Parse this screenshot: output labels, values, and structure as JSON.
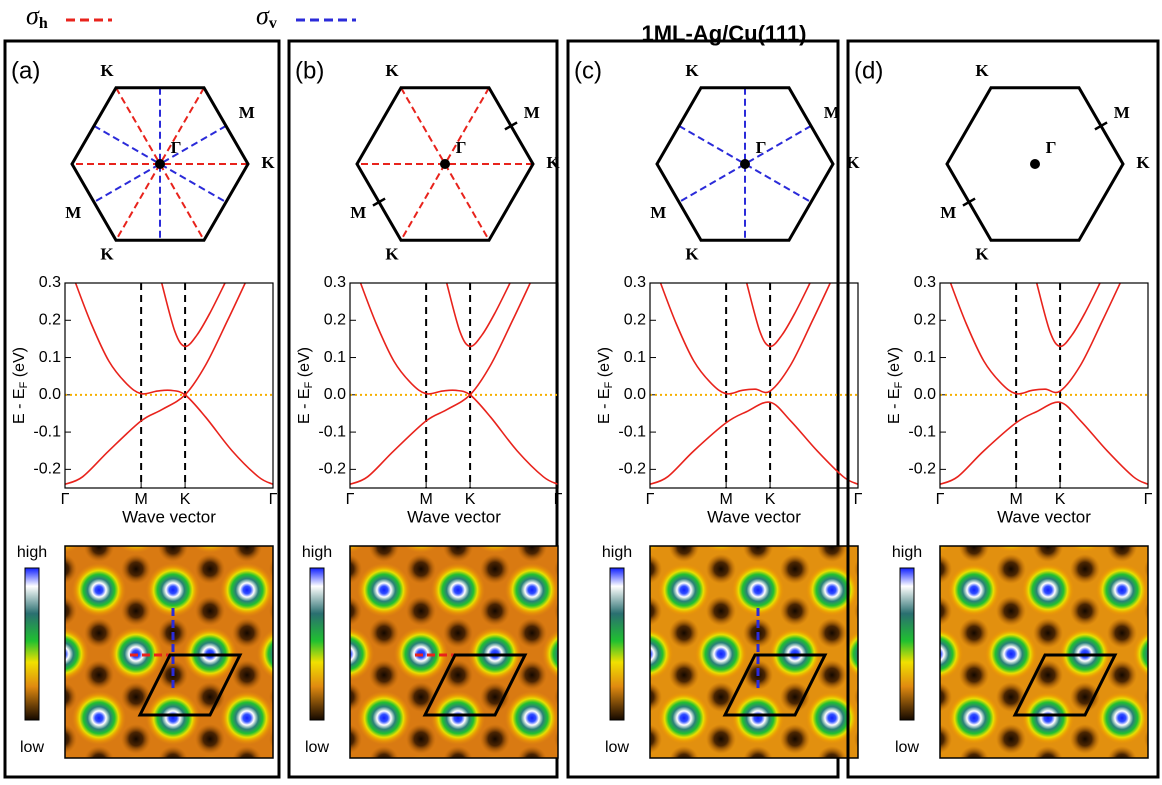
{
  "header": {
    "sigma_h": {
      "symbol": "σ",
      "sub": "h",
      "color": "#e8231c"
    },
    "sigma_v": {
      "symbol": "σ",
      "sub": "v",
      "color": "#2b2bd9"
    },
    "title": "1ML-Ag/Cu(111)"
  },
  "panels": [
    {
      "label": "(a)",
      "bz": {
        "labels": [
          "K",
          "M",
          "K",
          "M",
          "K",
          "Γ"
        ],
        "sigma_h": true,
        "sigma_v": true,
        "m_ticks": false
      },
      "stm": {
        "high": "high",
        "low": "low",
        "sigma_h": true,
        "sigma_v": true
      }
    },
    {
      "label": "(b)",
      "bz": {
        "labels": [
          "K",
          "M",
          "K",
          "M",
          "K",
          "Γ"
        ],
        "sigma_h": true,
        "sigma_v": false,
        "m_ticks": true
      },
      "stm": {
        "high": "high",
        "low": "low",
        "sigma_h": true,
        "sigma_v": false
      }
    },
    {
      "label": "(c)",
      "bz": {
        "labels": [
          "K",
          "M",
          "K",
          "M",
          "K",
          "Γ"
        ],
        "sigma_h": false,
        "sigma_v": true,
        "m_ticks": false
      },
      "stm": {
        "high": "high",
        "low": "low",
        "sigma_h": false,
        "sigma_v": true
      }
    },
    {
      "label": "(d)",
      "bz": {
        "labels": [
          "K",
          "M",
          "K",
          "M",
          "K",
          "Γ"
        ],
        "sigma_h": false,
        "sigma_v": false,
        "m_ticks": true
      },
      "stm": {
        "high": "high",
        "low": "low",
        "sigma_h": false,
        "sigma_v": false
      }
    }
  ],
  "chart_data": [
    {
      "type": "line",
      "ylabel": [
        "E - E",
        "F",
        " (eV)"
      ],
      "xlabel": "Wave vector",
      "xlim": [
        0,
        2.366
      ],
      "ylim": [
        -0.25,
        0.3
      ],
      "xticks": [
        {
          "value": 0,
          "label": "Γ"
        },
        {
          "value": 0.866,
          "label": "M"
        },
        {
          "value": 1.366,
          "label": "K"
        },
        {
          "value": 2.366,
          "label": "Γ"
        }
      ],
      "yticks": [
        0.3,
        0.2,
        0.1,
        {
          "value": 0,
          "label": "0.0"
        },
        -0.1,
        -0.2
      ],
      "zero_line_color": "#f5b000",
      "series": [
        {
          "color": "#e8231c",
          "x": [
            0.12,
            0.3,
            0.5,
            0.7,
            0.866,
            1.05,
            1.2,
            1.366,
            1.6,
            1.9,
            2.2,
            2.366
          ],
          "values": [
            0.3,
            0.19,
            0.09,
            0.03,
            0.003,
            0.01,
            0.012,
            0,
            -0.06,
            -0.15,
            -0.22,
            -0.24
          ]
        },
        {
          "color": "#e8231c",
          "x": [
            0,
            0.2,
            0.5,
            0.866,
            1.1,
            1.366,
            1.6,
            1.85,
            2.05
          ],
          "values": [
            -0.24,
            -0.22,
            -0.15,
            -0.07,
            -0.04,
            0,
            0.08,
            0.2,
            0.3
          ]
        },
        {
          "color": "#e8231c",
          "x": [
            1.1,
            1.25,
            1.366,
            1.5,
            1.65,
            1.82
          ],
          "values": [
            0.3,
            0.17,
            0.13,
            0.16,
            0.22,
            0.3
          ]
        }
      ]
    },
    {
      "type": "line",
      "ylabel": [
        "E - E",
        "F",
        " (eV)"
      ],
      "xlabel": "Wave vector",
      "xlim": [
        0,
        2.366
      ],
      "ylim": [
        -0.25,
        0.3
      ],
      "xticks": [
        {
          "value": 0,
          "label": "Γ"
        },
        {
          "value": 0.866,
          "label": "M"
        },
        {
          "value": 1.366,
          "label": "K"
        },
        {
          "value": 2.366,
          "label": "Γ"
        }
      ],
      "yticks": [
        0.3,
        0.2,
        0.1,
        {
          "value": 0,
          "label": "0.0"
        },
        -0.1,
        -0.2
      ],
      "zero_line_color": "#f5b000",
      "series": [
        {
          "color": "#e8231c",
          "x": [
            0.12,
            0.3,
            0.5,
            0.7,
            0.866,
            1.05,
            1.2,
            1.366,
            1.6,
            1.9,
            2.2,
            2.366
          ],
          "values": [
            0.3,
            0.19,
            0.09,
            0.03,
            0.003,
            0.01,
            0.012,
            0,
            -0.06,
            -0.15,
            -0.22,
            -0.24
          ]
        },
        {
          "color": "#e8231c",
          "x": [
            0,
            0.2,
            0.5,
            0.866,
            1.1,
            1.366,
            1.6,
            1.85,
            2.05
          ],
          "values": [
            -0.24,
            -0.22,
            -0.15,
            -0.07,
            -0.04,
            0,
            0.08,
            0.2,
            0.3
          ]
        },
        {
          "color": "#e8231c",
          "x": [
            1.1,
            1.25,
            1.366,
            1.5,
            1.65,
            1.82
          ],
          "values": [
            0.3,
            0.17,
            0.13,
            0.16,
            0.22,
            0.3
          ]
        }
      ]
    },
    {
      "type": "line",
      "ylabel": [
        "E - E",
        "F",
        " (eV)"
      ],
      "xlabel": "Wave vector",
      "xlim": [
        0,
        2.366
      ],
      "ylim": [
        -0.25,
        0.3
      ],
      "xticks": [
        {
          "value": 0,
          "label": "Γ"
        },
        {
          "value": 0.866,
          "label": "M"
        },
        {
          "value": 1.366,
          "label": "K"
        },
        {
          "value": 2.366,
          "label": "Γ"
        }
      ],
      "yticks": [
        0.3,
        0.2,
        0.1,
        {
          "value": 0,
          "label": "0.0"
        },
        -0.1,
        -0.2
      ],
      "zero_line_color": "#f5b000",
      "series": [
        {
          "color": "#e8231c",
          "x": [
            0.12,
            0.3,
            0.5,
            0.7,
            0.866,
            1.05,
            1.2,
            1.366,
            1.6,
            1.85,
            2.05
          ],
          "values": [
            0.3,
            0.19,
            0.09,
            0.03,
            0.003,
            0.012,
            0.015,
            0.01,
            0.08,
            0.2,
            0.3
          ]
        },
        {
          "color": "#e8231c",
          "x": [
            0,
            0.2,
            0.5,
            0.866,
            1.1,
            1.366,
            1.6,
            1.9,
            2.2,
            2.366
          ],
          "values": [
            -0.24,
            -0.22,
            -0.15,
            -0.075,
            -0.045,
            -0.02,
            -0.07,
            -0.15,
            -0.22,
            -0.24
          ]
        },
        {
          "color": "#e8231c",
          "x": [
            1.1,
            1.25,
            1.366,
            1.5,
            1.65,
            1.82
          ],
          "values": [
            0.3,
            0.17,
            0.13,
            0.16,
            0.22,
            0.3
          ]
        }
      ]
    },
    {
      "type": "line",
      "ylabel": [
        "E - E",
        "F",
        " (eV)"
      ],
      "xlabel": "Wave vector",
      "xlim": [
        0,
        2.366
      ],
      "ylim": [
        -0.25,
        0.3
      ],
      "xticks": [
        {
          "value": 0,
          "label": "Γ"
        },
        {
          "value": 0.866,
          "label": "M"
        },
        {
          "value": 1.366,
          "label": "K"
        },
        {
          "value": 2.366,
          "label": "Γ"
        }
      ],
      "yticks": [
        0.3,
        0.2,
        0.1,
        {
          "value": 0,
          "label": "0.0"
        },
        -0.1,
        -0.2
      ],
      "zero_line_color": "#f5b000",
      "series": [
        {
          "color": "#e8231c",
          "x": [
            0.12,
            0.3,
            0.5,
            0.7,
            0.866,
            1.05,
            1.2,
            1.366,
            1.6,
            1.85,
            2.05
          ],
          "values": [
            0.3,
            0.19,
            0.09,
            0.03,
            0.003,
            0.012,
            0.015,
            0.01,
            0.08,
            0.2,
            0.3
          ]
        },
        {
          "color": "#e8231c",
          "x": [
            0,
            0.2,
            0.5,
            0.866,
            1.1,
            1.366,
            1.6,
            1.9,
            2.2,
            2.366
          ],
          "values": [
            -0.24,
            -0.22,
            -0.15,
            -0.075,
            -0.045,
            -0.02,
            -0.07,
            -0.15,
            -0.22,
            -0.24
          ]
        },
        {
          "color": "#e8231c",
          "x": [
            1.1,
            1.25,
            1.366,
            1.5,
            1.65,
            1.82
          ],
          "values": [
            0.3,
            0.17,
            0.13,
            0.16,
            0.22,
            0.3
          ]
        }
      ]
    }
  ]
}
